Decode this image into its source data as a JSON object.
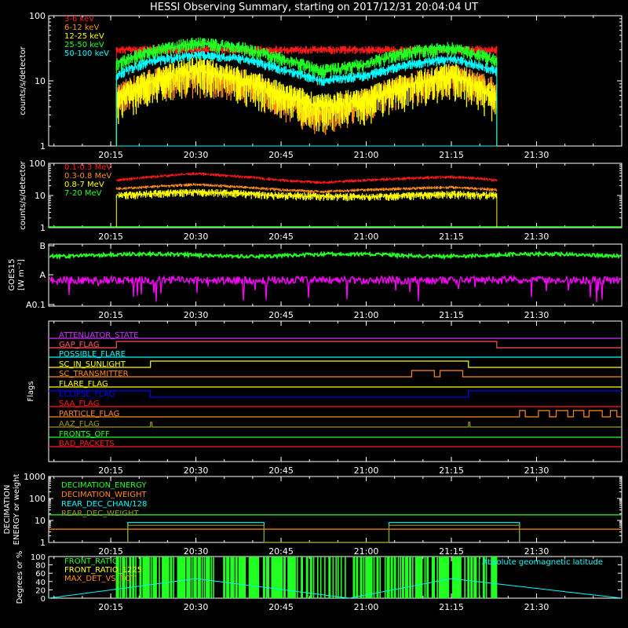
{
  "title": "HESSI Observing Summary, starting on 2017/12/31 20:04:04 UT",
  "colors": {
    "background": "#000000",
    "axes": "#ffffff",
    "red": "#ff1a1a",
    "orange": "#ff8c1a",
    "yellow": "#ffff00",
    "green": "#22ff22",
    "cyan": "#00ffff",
    "magenta": "#ff00ff",
    "blue": "#0000ff",
    "violet": "#cc33ff",
    "olive": "#999922",
    "pink": "#ff5555"
  },
  "time_axis": {
    "start": "20:04:04",
    "end": "21:45",
    "tick_labels": [
      "20:15",
      "20:30",
      "20:45",
      "21:00",
      "21:15",
      "21:30"
    ]
  },
  "chart_data": [
    {
      "panel": "rates",
      "type": "line",
      "ylabel": "counts/s/detector",
      "yscale": "log",
      "ylim": [
        1,
        100
      ],
      "ytick_labels": [
        "1",
        "10",
        "100"
      ],
      "data_interval": [
        "20:16",
        "21:23"
      ],
      "series": [
        {
          "name": "3-6 keV",
          "color": "red",
          "x": [
            "20:16",
            "20:30",
            "20:45",
            "21:00",
            "21:15",
            "21:23"
          ],
          "values": [
            30,
            30,
            30,
            30,
            30,
            30
          ]
        },
        {
          "name": "6-12 keV",
          "color": "orange",
          "x": [
            "20:16",
            "20:22",
            "20:30",
            "20:38",
            "20:45",
            "20:52",
            "21:00",
            "21:08",
            "21:15",
            "21:23"
          ],
          "values": [
            6,
            10,
            12,
            10,
            5,
            3,
            5,
            9,
            12,
            7
          ]
        },
        {
          "name": "12-25 keV",
          "color": "yellow",
          "x": [
            "20:16",
            "20:30",
            "20:45",
            "20:52",
            "21:00",
            "21:15",
            "21:23"
          ],
          "values": [
            5,
            15,
            6,
            4,
            5,
            12,
            5
          ]
        },
        {
          "name": "25-50 keV",
          "color": "green",
          "x": [
            "20:16",
            "20:22",
            "20:30",
            "20:38",
            "20:45",
            "20:52",
            "21:00",
            "21:08",
            "21:15",
            "21:23"
          ],
          "values": [
            18,
            28,
            38,
            32,
            22,
            14,
            18,
            28,
            32,
            20
          ]
        },
        {
          "name": "50-100 keV",
          "color": "cyan",
          "x": [
            "20:16",
            "20:22",
            "20:30",
            "20:38",
            "20:45",
            "20:52",
            "21:00",
            "21:08",
            "21:15",
            "21:23"
          ],
          "values": [
            12,
            20,
            25,
            22,
            15,
            10,
            12,
            18,
            22,
            14
          ]
        }
      ]
    },
    {
      "panel": "high_energy",
      "type": "line",
      "ylabel": "counts/s/detector",
      "yscale": "log",
      "ylim": [
        1,
        100
      ],
      "ytick_labels": [
        "1",
        "10",
        "100"
      ],
      "data_interval": [
        "20:16",
        "21:23"
      ],
      "series": [
        {
          "name": "0.1-0.3 MeV",
          "color": "red",
          "x": [
            "20:16",
            "20:30",
            "20:45",
            "20:52",
            "21:00",
            "21:15",
            "21:23"
          ],
          "values": [
            30,
            48,
            30,
            25,
            30,
            38,
            30
          ]
        },
        {
          "name": "0.3-0.8 MeV",
          "color": "orange",
          "x": [
            "20:16",
            "20:30",
            "20:45",
            "20:52",
            "21:00",
            "21:15",
            "21:23"
          ],
          "values": [
            16,
            22,
            15,
            13,
            15,
            18,
            15
          ]
        },
        {
          "name": "0.8-7 MeV",
          "color": "yellow",
          "x": [
            "20:16",
            "20:30",
            "20:45",
            "21:00",
            "21:15",
            "21:23"
          ],
          "values": [
            10,
            13,
            10,
            9,
            11,
            10
          ]
        },
        {
          "name": "7-20 MeV",
          "color": "green",
          "x": [
            "20:16",
            "21:23"
          ],
          "values": [
            0,
            0
          ]
        }
      ]
    },
    {
      "panel": "goes",
      "type": "line",
      "ylabel": "GOES15",
      "unit_label": "[W m⁻²]",
      "yscale": "log",
      "ytick_labels": [
        "A0.1",
        "A",
        "B"
      ],
      "series": [
        {
          "name": "0.1-0.8 nm",
          "color": "green",
          "level": "B",
          "note": "just below B level"
        },
        {
          "name": "0.05-0.4 nm",
          "color": "magenta",
          "level": "between A0.1 and A"
        }
      ]
    },
    {
      "panel": "flags",
      "type": "line",
      "ylabel": "Flags",
      "flags": [
        {
          "label": "ATTENUATOR_STATE",
          "color": "violet",
          "steps": []
        },
        {
          "label": "GAP_FLAG",
          "color": "pink",
          "steps": [
            [
              "20:16",
              1
            ],
            [
              "21:23",
              0
            ]
          ]
        },
        {
          "label": "POSSIBLE_FLARE",
          "color": "cyan",
          "steps": []
        },
        {
          "label": "SC_IN_SUNLIGHT",
          "color": "yellow",
          "steps": [
            [
              "20:22",
              1
            ],
            [
              "21:18",
              0
            ]
          ]
        },
        {
          "label": "SC_TRANSMITTER",
          "color": "orange",
          "steps": [
            [
              "21:08",
              1
            ],
            [
              "21:12",
              0
            ],
            [
              "21:13",
              1
            ],
            [
              "21:17",
              0
            ]
          ]
        },
        {
          "label": "FLARE_FLAG",
          "color": "yellow",
          "steps": []
        },
        {
          "label": "ECLIPSE_FLAG",
          "color": "blue",
          "steps": [
            [
              "20:22",
              0
            ],
            [
              "21:18",
              1
            ]
          ]
        },
        {
          "label": "SAA_FLAG",
          "color": "red",
          "steps": []
        },
        {
          "label": "PARTICLE_FLAG",
          "color": "orange",
          "steps": [
            [
              "21:27",
              1
            ]
          ]
        },
        {
          "label": "AAZ_FLAG",
          "color": "olive",
          "steps": [
            [
              "20:22",
              1
            ],
            [
              "21:18",
              1
            ]
          ]
        },
        {
          "label": "FRONTS_OFF",
          "color": "green",
          "steps": []
        },
        {
          "label": "BAD_PACKETS",
          "color": "red",
          "steps": []
        }
      ]
    },
    {
      "panel": "decimation",
      "type": "line",
      "ylabel": "DECIMATION ENERGY or weight",
      "yscale": "log",
      "ylim": [
        1,
        1000
      ],
      "ytick_labels": [
        "1",
        "10",
        "100",
        "1000"
      ],
      "series": [
        {
          "name": "DECIMATION_ENERGY",
          "color": "green",
          "x": [
            "20:04:04",
            "21:45"
          ],
          "values": [
            18,
            18
          ]
        },
        {
          "name": "DECIMATION_WEIGHT",
          "color": "orange",
          "x": [
            "20:04:04",
            "21:45"
          ],
          "values": [
            4,
            4
          ]
        },
        {
          "name": "REAR_DEC_CHAN/128",
          "color": "cyan",
          "x": [
            "20:18",
            "20:18",
            "20:42",
            "20:42",
            "21:04",
            "21:04",
            "21:27",
            "21:27"
          ],
          "values": [
            1,
            8,
            8,
            1,
            1,
            8,
            8,
            1
          ]
        },
        {
          "name": "REAR_DEC_WEIGHT",
          "color": "olive",
          "x": [
            "20:18",
            "20:18",
            "20:42",
            "20:42",
            "21:04",
            "21:04",
            "21:27",
            "21:27"
          ],
          "values": [
            1,
            6,
            6,
            1,
            1,
            6,
            6,
            1
          ]
        }
      ]
    },
    {
      "panel": "ratios",
      "type": "line",
      "ylabel": "Degrees or %",
      "ylim": [
        0,
        100
      ],
      "ytick_labels": [
        "0",
        "20",
        "40",
        "60",
        "80",
        "100"
      ],
      "annotation": "Absolute geomagnetic latitude",
      "series": [
        {
          "name": "FRONT_RATIO",
          "color": "green",
          "x": [
            "20:16",
            "21:23"
          ],
          "values": [
            100,
            0
          ]
        },
        {
          "name": "FRONT_RATIO_1225",
          "color": "yellow",
          "x": [],
          "values": []
        },
        {
          "name": "MAX_DET_VS_TOT",
          "color": "orange",
          "x": [],
          "values": []
        },
        {
          "name": "Absolute geomagnetic latitude",
          "color": "cyan",
          "x": [
            "20:04:04",
            "20:30",
            "20:57",
            "21:15",
            "21:45"
          ],
          "values": [
            0,
            47,
            0,
            47,
            0
          ]
        }
      ]
    }
  ]
}
